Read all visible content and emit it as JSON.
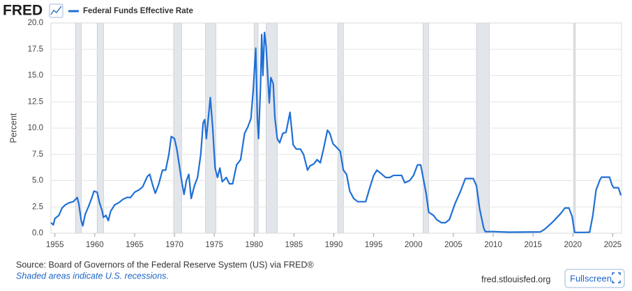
{
  "header": {
    "logo": "FRED"
  },
  "chart_data": {
    "type": "line",
    "ylabel": "Percent",
    "xlim": [
      1954.5,
      2026.1
    ],
    "xticks": [
      1955,
      1960,
      1965,
      1970,
      1975,
      1980,
      1985,
      1990,
      1995,
      2000,
      2005,
      2010,
      2015,
      2020,
      2025
    ],
    "ylim": [
      0,
      20
    ],
    "yticks": [
      {
        "value": 0,
        "label": "0.0"
      },
      2.5,
      {
        "value": 5,
        "label": "5.0"
      },
      7.5,
      {
        "value": 10,
        "label": "10.0"
      },
      12.5,
      {
        "value": 15,
        "label": "15.0"
      },
      17.5,
      {
        "value": 20,
        "label": "20.0"
      }
    ],
    "grid": true,
    "recessions": [
      [
        1957.6,
        1958.3
      ],
      [
        1960.3,
        1961.1
      ],
      [
        1969.9,
        1970.9
      ],
      [
        1973.9,
        1975.2
      ],
      [
        1980.0,
        1980.5
      ],
      [
        1981.5,
        1982.9
      ],
      [
        1990.5,
        1991.2
      ],
      [
        2001.2,
        2001.9
      ],
      [
        2007.9,
        2009.5
      ],
      [
        2020.1,
        2020.3
      ]
    ],
    "recession_color": "#e2e5ea",
    "x": [
      1954.5,
      1954.8,
      1955.0,
      1955.5,
      1955.9,
      1956.3,
      1956.8,
      1957.3,
      1957.8,
      1958.0,
      1958.3,
      1958.5,
      1958.8,
      1959.2,
      1959.6,
      1959.9,
      1960.3,
      1960.6,
      1960.9,
      1961.1,
      1961.4,
      1961.7,
      1962.0,
      1962.5,
      1963.0,
      1963.5,
      1964.0,
      1964.5,
      1965.0,
      1965.5,
      1966.0,
      1966.6,
      1966.9,
      1967.3,
      1967.6,
      1968.0,
      1968.5,
      1968.9,
      1969.3,
      1969.6,
      1970.0,
      1970.3,
      1970.6,
      1970.9,
      1971.2,
      1971.5,
      1971.8,
      1972.1,
      1972.5,
      1972.9,
      1973.3,
      1973.6,
      1973.8,
      1974.0,
      1974.5,
      1974.8,
      1975.1,
      1975.4,
      1975.7,
      1976.0,
      1976.5,
      1976.9,
      1977.3,
      1977.8,
      1978.3,
      1978.8,
      1979.2,
      1979.6,
      1979.9,
      1980.2,
      1980.4,
      1980.55,
      1980.8,
      1980.95,
      1981.1,
      1981.3,
      1981.5,
      1981.7,
      1981.9,
      1982.1,
      1982.4,
      1982.6,
      1982.9,
      1983.2,
      1983.6,
      1984.0,
      1984.5,
      1984.9,
      1985.3,
      1985.8,
      1986.2,
      1986.7,
      1987.0,
      1987.5,
      1987.9,
      1988.3,
      1988.7,
      1989.2,
      1989.5,
      1989.9,
      1990.3,
      1990.8,
      1991.2,
      1991.6,
      1992.0,
      1992.5,
      1993.0,
      1993.5,
      1994.0,
      1994.5,
      1995.0,
      1995.4,
      1995.9,
      1996.5,
      1997.0,
      1997.5,
      1998.5,
      1998.9,
      1999.5,
      2000.0,
      2000.5,
      2000.9,
      2001.2,
      2001.6,
      2001.9,
      2002.5,
      2002.9,
      2003.5,
      2004.0,
      2004.5,
      2005.2,
      2005.9,
      2006.5,
      2007.5,
      2007.9,
      2008.3,
      2008.8,
      2009.0,
      2010.0,
      2012.0,
      2015.9,
      2016.5,
      2017.5,
      2018.5,
      2019.0,
      2019.5,
      2019.9,
      2020.2,
      2021.5,
      2022.1,
      2022.5,
      2022.9,
      2023.4,
      2023.6,
      2024.6,
      2024.9,
      2025.1,
      2025.7,
      2025.9,
      2026.0
    ],
    "series": [
      {
        "name": "Federal Funds Effective Rate",
        "color": "#1f6fd6",
        "values": [
          1.0,
          0.8,
          1.4,
          1.7,
          2.4,
          2.7,
          2.9,
          3.0,
          3.4,
          2.8,
          1.2,
          0.7,
          1.8,
          2.5,
          3.3,
          4.0,
          3.9,
          2.9,
          2.2,
          1.5,
          1.7,
          1.2,
          2.1,
          2.7,
          2.9,
          3.2,
          3.4,
          3.4,
          3.9,
          4.1,
          4.4,
          5.4,
          5.6,
          4.5,
          3.8,
          4.6,
          6.0,
          6.0,
          7.5,
          9.2,
          9.0,
          8.0,
          6.5,
          5.0,
          3.7,
          5.0,
          5.6,
          3.3,
          4.5,
          5.3,
          7.5,
          10.5,
          10.8,
          9.0,
          12.9,
          10.0,
          6.2,
          5.3,
          6.2,
          4.9,
          5.3,
          4.7,
          4.7,
          6.5,
          7.0,
          9.5,
          10.1,
          10.9,
          13.8,
          17.6,
          11.0,
          9.0,
          14.0,
          18.9,
          15.0,
          19.1,
          17.8,
          15.1,
          12.4,
          14.8,
          14.2,
          11.0,
          9.0,
          8.6,
          9.5,
          9.6,
          11.5,
          8.4,
          8.0,
          8.0,
          7.5,
          6.0,
          6.4,
          6.6,
          7.0,
          6.7,
          8.0,
          9.8,
          9.5,
          8.5,
          8.2,
          7.8,
          6.0,
          5.6,
          4.0,
          3.3,
          3.0,
          3.0,
          3.0,
          4.3,
          5.5,
          6.0,
          5.7,
          5.3,
          5.3,
          5.5,
          5.5,
          4.8,
          5.0,
          5.5,
          6.5,
          6.5,
          5.3,
          3.7,
          2.0,
          1.7,
          1.3,
          1.0,
          1.0,
          1.3,
          2.8,
          4.0,
          5.2,
          5.2,
          4.5,
          2.3,
          0.5,
          0.15,
          0.15,
          0.1,
          0.12,
          0.4,
          1.1,
          1.9,
          2.4,
          2.4,
          1.6,
          0.08,
          0.08,
          0.1,
          1.7,
          4.1,
          5.1,
          5.33,
          5.33,
          4.6,
          4.33,
          4.33,
          3.9,
          3.6
        ]
      }
    ]
  },
  "footer": {
    "source": "Source: Board of Governors of the Federal Reserve System (US) via FRED®",
    "note": "Shaded areas indicate U.S. recessions.",
    "site": "fred.stlouisfed.org",
    "button": "Fullscreen"
  }
}
